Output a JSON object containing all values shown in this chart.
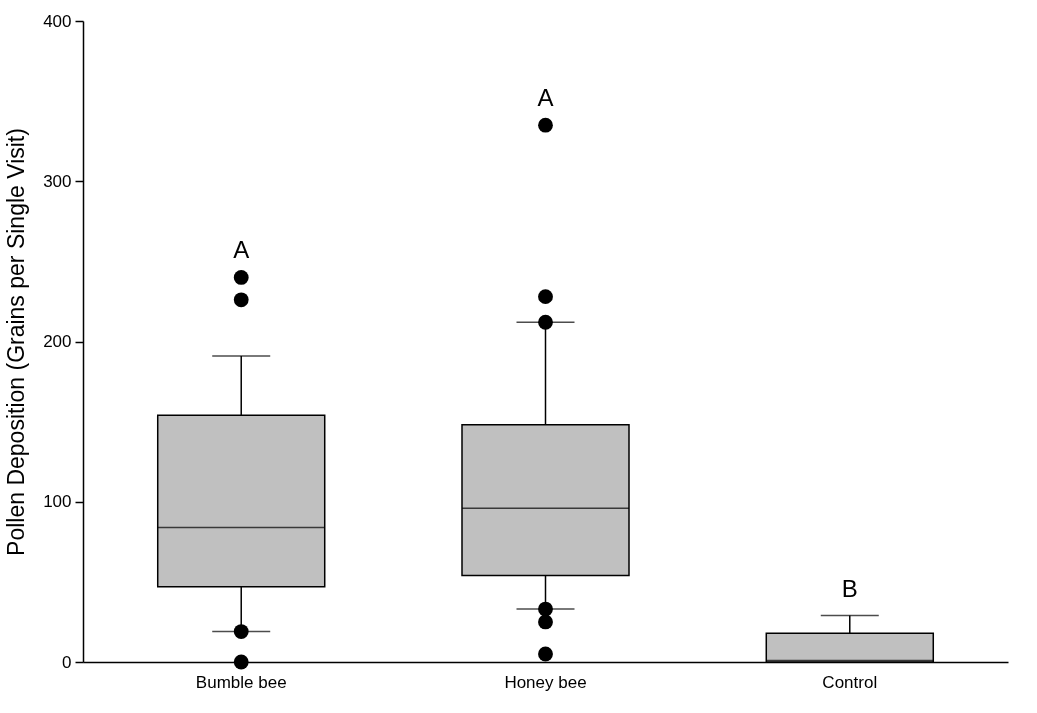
{
  "chart_data": {
    "type": "box",
    "ylabel": "Pollen Deposition (Grains per Single Visit)",
    "categories": [
      "Bumble bee",
      "Honey bee",
      "Control"
    ],
    "ylim": [
      0,
      400
    ],
    "yticks": [
      0,
      100,
      200,
      300,
      400
    ],
    "marker": "circle",
    "series": [
      {
        "color": "#c0c0c0",
        "boxes": [
          {
            "low": 19,
            "q1": 47,
            "median": 84,
            "q3": 154,
            "high": 191,
            "outliers": [
              240,
              226,
              19,
              0
            ]
          },
          {
            "low": 33,
            "q1": 54,
            "median": 96,
            "q3": 148,
            "high": 212,
            "outliers": [
              335,
              228,
              212,
              33,
              25,
              5
            ]
          },
          {
            "low": 0,
            "q1": 0,
            "median": 1,
            "q3": 18,
            "high": 29
          }
        ]
      }
    ],
    "annotations": [
      "A",
      "A",
      "B"
    ]
  }
}
